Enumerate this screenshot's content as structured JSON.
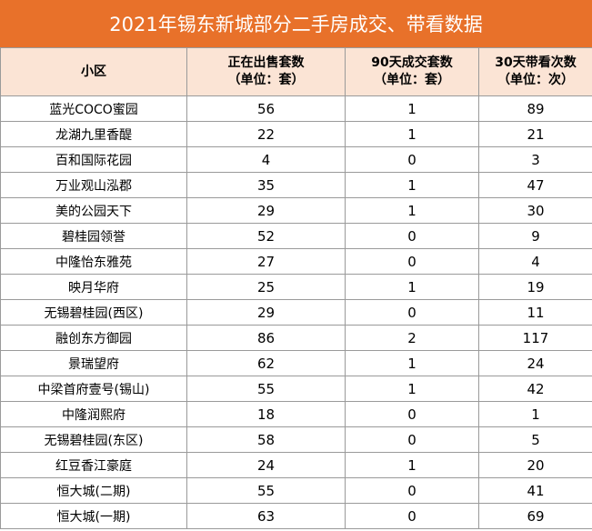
{
  "title": "2021年锡东新城部分二手房成交、带看数据",
  "colors": {
    "title_bg": "#e8712a",
    "title_text": "#ffffff",
    "header_bg": "#fbe4d5",
    "border": "#9a9a9a"
  },
  "headers": [
    {
      "line1": "小区",
      "line2": ""
    },
    {
      "line1": "正在出售套数",
      "line2": "（单位：套）"
    },
    {
      "line1": "90天成交套数",
      "line2": "（单位：套）"
    },
    {
      "line1": "30天带看次数",
      "line2": "（单位：次）"
    }
  ],
  "rows": [
    {
      "name": "蓝光COCO蜜园",
      "on_sale": "56",
      "sold_90d": "1",
      "views_30d": "89"
    },
    {
      "name": "龙湖九里香醍",
      "on_sale": "22",
      "sold_90d": "1",
      "views_30d": "21"
    },
    {
      "name": "百和国际花园",
      "on_sale": "4",
      "sold_90d": "0",
      "views_30d": "3"
    },
    {
      "name": "万业观山泓郡",
      "on_sale": "35",
      "sold_90d": "1",
      "views_30d": "47"
    },
    {
      "name": "美的公园天下",
      "on_sale": "29",
      "sold_90d": "1",
      "views_30d": "30"
    },
    {
      "name": "碧桂园领誉",
      "on_sale": "52",
      "sold_90d": "0",
      "views_30d": "9"
    },
    {
      "name": "中隆怡东雅苑",
      "on_sale": "27",
      "sold_90d": "0",
      "views_30d": "4"
    },
    {
      "name": "映月华府",
      "on_sale": "25",
      "sold_90d": "1",
      "views_30d": "19"
    },
    {
      "name": "无锡碧桂园(西区)",
      "on_sale": "29",
      "sold_90d": "0",
      "views_30d": "11"
    },
    {
      "name": "融创东方御园",
      "on_sale": "86",
      "sold_90d": "2",
      "views_30d": "117"
    },
    {
      "name": "景瑞望府",
      "on_sale": "62",
      "sold_90d": "1",
      "views_30d": "24"
    },
    {
      "name": "中梁首府壹号(锡山)",
      "on_sale": "55",
      "sold_90d": "1",
      "views_30d": "42"
    },
    {
      "name": "中隆润熙府",
      "on_sale": "18",
      "sold_90d": "0",
      "views_30d": "1"
    },
    {
      "name": "无锡碧桂园(东区)",
      "on_sale": "58",
      "sold_90d": "0",
      "views_30d": "5"
    },
    {
      "name": "红豆香江豪庭",
      "on_sale": "24",
      "sold_90d": "1",
      "views_30d": "20"
    },
    {
      "name": "恒大城(二期)",
      "on_sale": "55",
      "sold_90d": "0",
      "views_30d": "41"
    },
    {
      "name": "恒大城(一期)",
      "on_sale": "63",
      "sold_90d": "0",
      "views_30d": "69"
    }
  ]
}
